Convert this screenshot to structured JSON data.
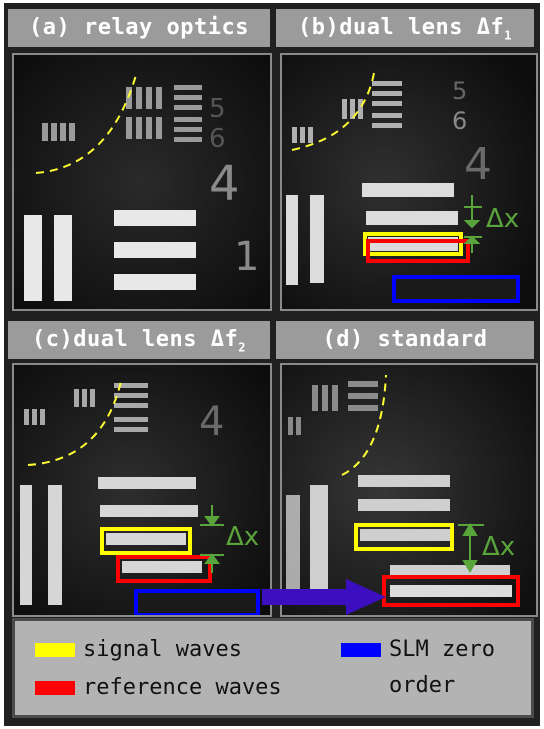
{
  "panels": [
    {
      "id": "a",
      "title": "(a) relay optics"
    },
    {
      "id": "b",
      "title": "(b)dual lens Δf",
      "title_sub": "1"
    },
    {
      "id": "c",
      "title": "(c)dual lens Δf",
      "title_sub": "2"
    },
    {
      "id": "d",
      "title": "(d) standard"
    }
  ],
  "annotations": {
    "delta_x": "Δx"
  },
  "legend": {
    "signal": {
      "label": "signal waves",
      "color": "#ffff00"
    },
    "reference": {
      "label": "reference waves",
      "color": "#ff0000"
    },
    "slm": {
      "label": "SLM zero",
      "label_line2": "order",
      "color": "#0000ff"
    }
  },
  "colors": {
    "arrow": "#3b0fbf",
    "annotation_green": "#5aa43c",
    "dashed_circle": "#ffff33"
  }
}
